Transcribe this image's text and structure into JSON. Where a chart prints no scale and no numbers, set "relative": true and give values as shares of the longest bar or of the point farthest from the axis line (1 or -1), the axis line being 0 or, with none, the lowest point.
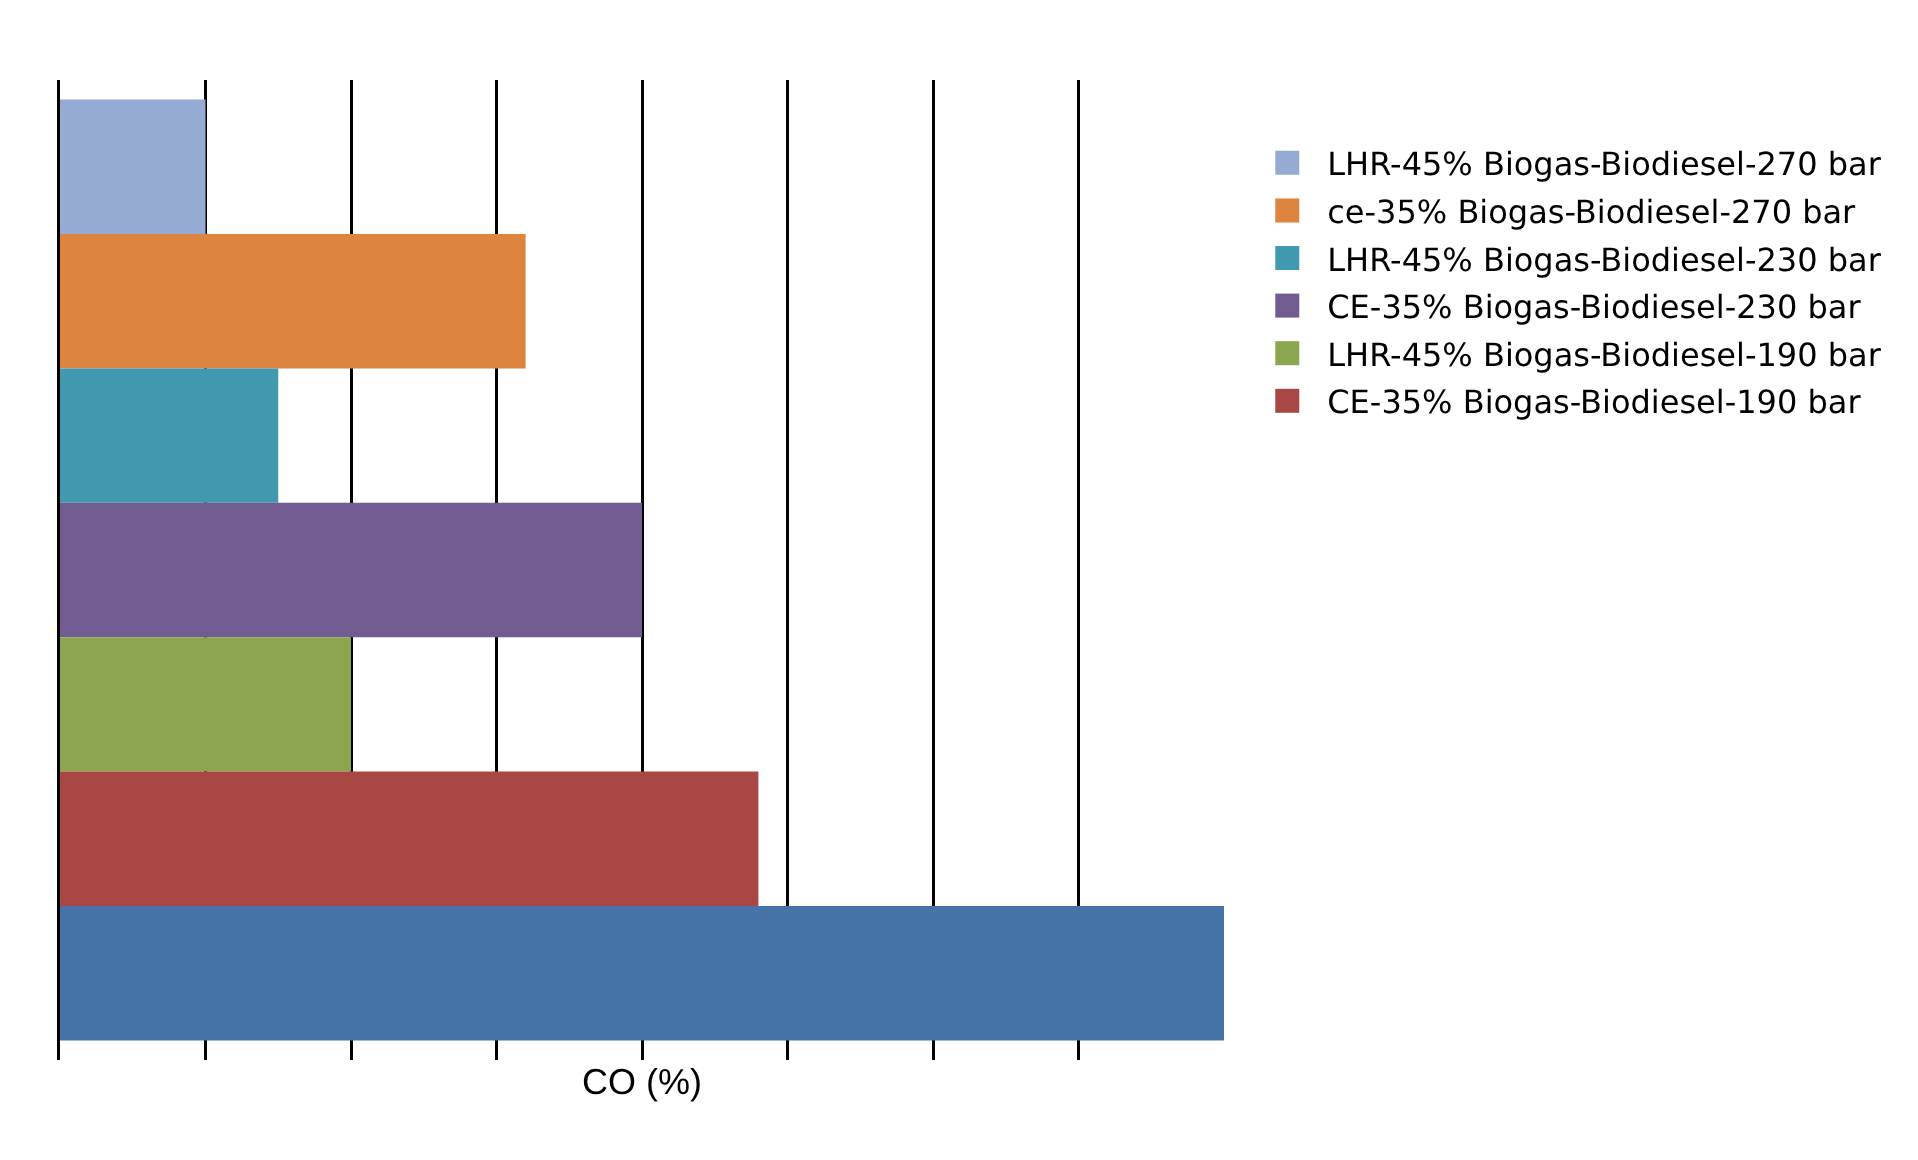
{
  "chart_data": {
    "type": "bar",
    "orientation": "horizontal",
    "relative": true,
    "xlabel": "CO (%)",
    "categories": [
      null
    ],
    "grid": "x",
    "legend": "right",
    "series": [
      {
        "name": "LHR-45% Biogas-Biodiesel-270 bar",
        "color": "#95abd3",
        "values": [
          0.125
        ]
      },
      {
        "name": "ce-35% Biogas-Biodiesel-270 bar",
        "color": "#dd843f",
        "values": [
          0.4
        ]
      },
      {
        "name": "LHR-45% Biogas-Biodiesel-230 bar",
        "color": "#4199b0",
        "values": [
          0.1875
        ]
      },
      {
        "name": "CE-35% Biogas-Biodiesel-230 bar",
        "color": "#725b91",
        "values": [
          0.5
        ]
      },
      {
        "name": "LHR-45% Biogas-Biodiesel-190 bar",
        "color": "#8ba64e",
        "values": [
          0.25
        ]
      },
      {
        "name": "CE-35% Biogas-Biodiesel-190 bar",
        "color": "#a94745",
        "values": [
          0.6
        ]
      },
      {
        "color": "#4674a8",
        "values": [
          1
        ]
      }
    ]
  }
}
